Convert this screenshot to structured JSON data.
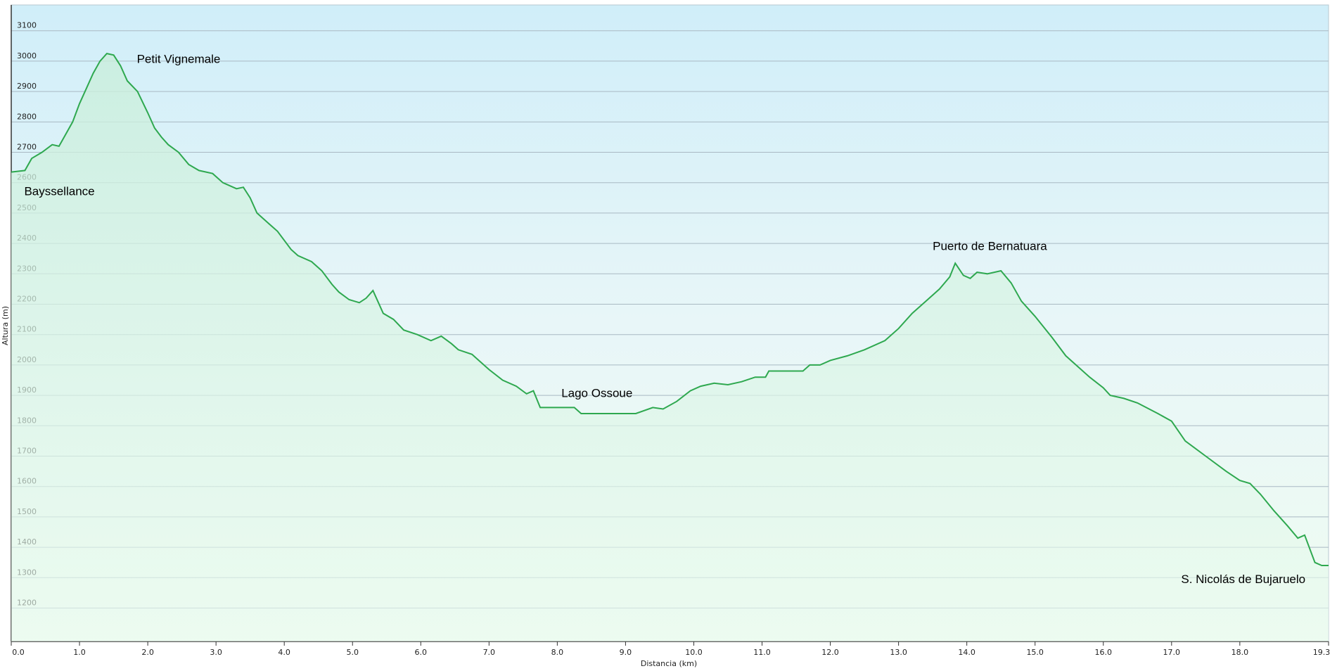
{
  "chart_data": {
    "type": "area",
    "xlabel": "Distancia  (km)",
    "ylabel": "Altura (m)",
    "xlim": [
      0,
      19.3
    ],
    "ylim": [
      1090,
      3185
    ],
    "xticks": [
      {
        "value": 0,
        "label": "0.0"
      },
      {
        "value": 1,
        "label": "1.0"
      },
      {
        "value": 2,
        "label": "2.0"
      },
      {
        "value": 3,
        "label": "3.0"
      },
      {
        "value": 4,
        "label": "4.0"
      },
      {
        "value": 5,
        "label": "5.0"
      },
      {
        "value": 6,
        "label": "6.0"
      },
      {
        "value": 7,
        "label": "7.0"
      },
      {
        "value": 8,
        "label": "8.0"
      },
      {
        "value": 9,
        "label": "9.0"
      },
      {
        "value": 10,
        "label": "10.0"
      },
      {
        "value": 11,
        "label": "11.0"
      },
      {
        "value": 12,
        "label": "12.0"
      },
      {
        "value": 13,
        "label": "13.0"
      },
      {
        "value": 14,
        "label": "14.0"
      },
      {
        "value": 15,
        "label": "15.0"
      },
      {
        "value": 16,
        "label": "16.0"
      },
      {
        "value": 17,
        "label": "17.0"
      },
      {
        "value": 18,
        "label": "18.0"
      },
      19.3
    ],
    "yticks": [
      1200,
      1300,
      1400,
      1500,
      1600,
      1700,
      1800,
      1900,
      2000,
      2100,
      2200,
      2300,
      2400,
      2500,
      2600,
      2700,
      2800,
      2900,
      3000,
      3100
    ],
    "grid": true,
    "color": "#2ea84f",
    "x": [
      0,
      0.2,
      0.3,
      0.45,
      0.6,
      0.7,
      0.8,
      0.9,
      1.0,
      1.1,
      1.2,
      1.3,
      1.4,
      1.5,
      1.6,
      1.7,
      1.85,
      2.0,
      2.1,
      2.2,
      2.3,
      2.45,
      2.6,
      2.75,
      2.95,
      3.1,
      3.3,
      3.4,
      3.5,
      3.6,
      3.75,
      3.9,
      4.1,
      4.2,
      4.4,
      4.55,
      4.7,
      4.8,
      4.95,
      5.1,
      5.2,
      5.3,
      5.35,
      5.45,
      5.6,
      5.75,
      5.95,
      6.15,
      6.3,
      6.45,
      6.55,
      6.75,
      7.0,
      7.2,
      7.4,
      7.55,
      7.65,
      7.75,
      8.25,
      8.35,
      9.15,
      9.4,
      9.55,
      9.75,
      9.95,
      10.1,
      10.3,
      10.5,
      10.7,
      10.9,
      11.05,
      11.1,
      11.6,
      11.7,
      11.85,
      12.0,
      12.25,
      12.5,
      12.8,
      13.0,
      13.2,
      13.4,
      13.6,
      13.75,
      13.83,
      13.95,
      14.05,
      14.15,
      14.3,
      14.5,
      14.65,
      14.8,
      15.0,
      15.25,
      15.45,
      15.6,
      15.8,
      16.0,
      16.1,
      16.3,
      16.5,
      16.8,
      17.0,
      17.2,
      17.5,
      17.8,
      18.0,
      18.15,
      18.3,
      18.5,
      18.7,
      18.85,
      18.95,
      19.05,
      19.1,
      19.2,
      19.3
    ],
    "values": [
      2635,
      2640,
      2680,
      2700,
      2725,
      2720,
      2760,
      2800,
      2860,
      2910,
      2960,
      3000,
      3025,
      3020,
      2985,
      2935,
      2900,
      2830,
      2780,
      2750,
      2725,
      2700,
      2660,
      2640,
      2630,
      2600,
      2580,
      2585,
      2550,
      2500,
      2470,
      2440,
      2380,
      2360,
      2340,
      2310,
      2265,
      2240,
      2215,
      2205,
      2220,
      2245,
      2220,
      2170,
      2150,
      2115,
      2100,
      2080,
      2095,
      2070,
      2050,
      2035,
      1985,
      1950,
      1930,
      1905,
      1915,
      1860,
      1860,
      1840,
      1840,
      1860,
      1855,
      1880,
      1915,
      1930,
      1940,
      1935,
      1945,
      1960,
      1960,
      1980,
      1980,
      2000,
      2000,
      2015,
      2030,
      2050,
      2080,
      2120,
      2170,
      2210,
      2250,
      2290,
      2335,
      2295,
      2285,
      2305,
      2300,
      2310,
      2270,
      2210,
      2160,
      2090,
      2030,
      2000,
      1960,
      1925,
      1900,
      1890,
      1875,
      1840,
      1815,
      1750,
      1700,
      1650,
      1620,
      1610,
      1575,
      1520,
      1470,
      1430,
      1440,
      1380,
      1350,
      1340,
      1340
    ],
    "annotations": [
      {
        "text": "Bayssellance",
        "x": 0.19,
        "y": 2569
      },
      {
        "text": "Petit Vignemale",
        "x": 1.84,
        "y": 3004
      },
      {
        "text": "Lago Ossoue",
        "x": 8.06,
        "y": 1905
      },
      {
        "text": "Puerto de Bernatuara",
        "x": 13.5,
        "y": 2389
      },
      {
        "text": "S. Nicolás de Bujaruelo",
        "x": 17.14,
        "y": 1293
      }
    ]
  }
}
